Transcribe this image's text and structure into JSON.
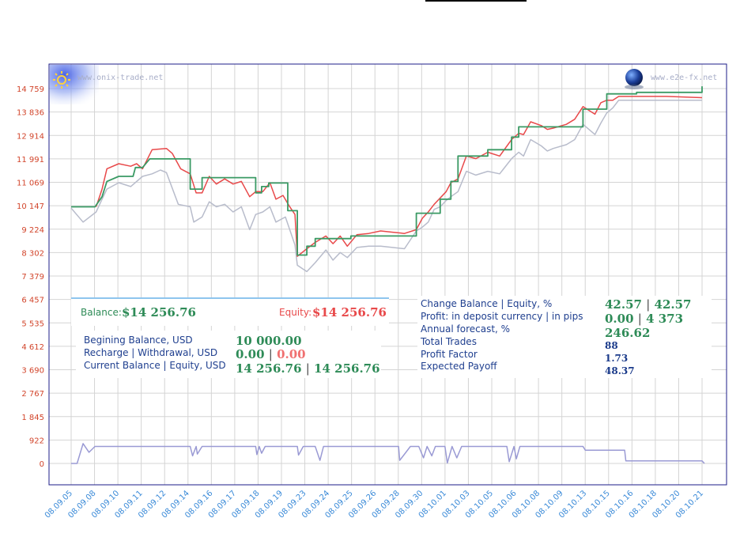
{
  "watermarks": {
    "left": "www.onix-trade.net",
    "right": "www.e2e-fx.net"
  },
  "summary": {
    "balance_label": "Balance:",
    "balance_value": "$14 256.76",
    "equity_label": "Equity:",
    "equity_value": "$14 256.76"
  },
  "left_stats": {
    "beginning_label": "Begining Balance, USD",
    "beginning_value": "10 000.00",
    "recharge_label": "Recharge | Withdrawal, USD",
    "recharge_value": "0.00",
    "withdrawal_value": "0.00",
    "current_label": "Current Balance | Equity, USD",
    "current_balance": "14 256.76",
    "current_equity": "14 256.76",
    "separator": "|"
  },
  "right_stats": {
    "change_label": "Change Balance | Equity, %",
    "change_balance": "42.57",
    "change_equity": "42.57",
    "profit_label": "Profit: in deposit currency | in pips",
    "profit_currency": "0.00",
    "profit_pips": "4 373",
    "forecast_label": "Annual forecast, %",
    "forecast_value": "246.62",
    "trades_label": "Total Trades",
    "trades_value": "88",
    "pf_label": "Profit Factor",
    "pf_value": "1.73",
    "payoff_label": "Expected Payoff",
    "payoff_value": "48.37"
  },
  "chart_data": {
    "type": "line",
    "y_ticks": [
      "14 759",
      "13 836",
      "12 914",
      "11 991",
      "11 069",
      "10 147",
      "9 224",
      "8 302",
      "7 379",
      "6 457",
      "5 535",
      "4 612",
      "3 690",
      "2 767",
      "1 845",
      "922",
      "0"
    ],
    "x_ticks": [
      "08.09.05",
      "08.09.08",
      "08.09.10",
      "08.09.11",
      "08.09.12",
      "08.09.14",
      "08.09.16",
      "08.09.17",
      "08.09.18",
      "08.09.19",
      "08.09.23",
      "08.09.24",
      "08.09.25",
      "08.09.26",
      "08.09.28",
      "08.09.30",
      "08.10.01",
      "08.10.03",
      "08.10.05",
      "08.10.06",
      "08.10.08",
      "08.10.09",
      "08.10.13",
      "08.10.15",
      "08.10.16",
      "08.10.18",
      "08.10.20",
      "08.10.21"
    ],
    "grid": true,
    "colors": {
      "balance": "#3a9a64",
      "equity": "#e8494a",
      "lower": "#b8bccb",
      "volume": "#9a9ad4",
      "axis": "#1e1e8a",
      "grid": "#d4d4d4",
      "ytick": "#d2452b",
      "xtick": "#3a8ad8"
    },
    "series": [
      {
        "key": "balance",
        "points": [
          [
            0,
            10100
          ],
          [
            2,
            10100
          ],
          [
            2.6,
            10500
          ],
          [
            3,
            11100
          ],
          [
            4,
            11300
          ],
          [
            5.2,
            11300
          ],
          [
            5.4,
            11650
          ],
          [
            6,
            11650
          ],
          [
            6.6,
            11990
          ],
          [
            10,
            11990
          ],
          [
            10,
            10800
          ],
          [
            11,
            10800
          ],
          [
            11,
            11250
          ],
          [
            15.5,
            11250
          ],
          [
            15.5,
            10650
          ],
          [
            16,
            10650
          ],
          [
            16,
            10900
          ],
          [
            16.6,
            10900
          ],
          [
            16.6,
            11040
          ],
          [
            18.2,
            11040
          ],
          [
            18.2,
            9950
          ],
          [
            19,
            9950
          ],
          [
            19,
            8200
          ],
          [
            19.8,
            8200
          ],
          [
            19.8,
            8550
          ],
          [
            20.5,
            8550
          ],
          [
            20.5,
            8850
          ],
          [
            23.5,
            8850
          ],
          [
            23.5,
            8950
          ],
          [
            29,
            8950
          ],
          [
            29,
            9850
          ],
          [
            31,
            9850
          ],
          [
            31,
            10400
          ],
          [
            31.9,
            10400
          ],
          [
            31.9,
            11100
          ],
          [
            32.5,
            11100
          ],
          [
            32.5,
            12100
          ],
          [
            35,
            12100
          ],
          [
            35,
            12350
          ],
          [
            37,
            12350
          ],
          [
            37,
            12850
          ],
          [
            37.6,
            12850
          ],
          [
            37.6,
            13250
          ],
          [
            43,
            13250
          ],
          [
            43,
            13950
          ],
          [
            45,
            13950
          ],
          [
            45,
            14550
          ],
          [
            47.5,
            14550
          ],
          [
            47.5,
            14610
          ],
          [
            53,
            14610
          ],
          [
            53,
            14850
          ]
        ]
      },
      {
        "key": "equity",
        "points": [
          [
            2.1,
            10100
          ],
          [
            2.6,
            10800
          ],
          [
            3,
            11600
          ],
          [
            4,
            11800
          ],
          [
            5,
            11700
          ],
          [
            5.5,
            11800
          ],
          [
            6,
            11600
          ],
          [
            6.8,
            12350
          ],
          [
            8,
            12400
          ],
          [
            8.5,
            12200
          ],
          [
            9.2,
            11600
          ],
          [
            10,
            11400
          ],
          [
            10.5,
            10650
          ],
          [
            11,
            10650
          ],
          [
            11.6,
            11300
          ],
          [
            12.2,
            11000
          ],
          [
            12.9,
            11200
          ],
          [
            13.6,
            11000
          ],
          [
            14.3,
            11100
          ],
          [
            15,
            10500
          ],
          [
            15.5,
            10700
          ],
          [
            16.1,
            10700
          ],
          [
            16.7,
            11050
          ],
          [
            17.2,
            10400
          ],
          [
            17.8,
            10550
          ],
          [
            18.3,
            10150
          ],
          [
            18.8,
            9800
          ],
          [
            19,
            8150
          ],
          [
            19.8,
            8450
          ],
          [
            20.5,
            8700
          ],
          [
            21.4,
            8950
          ],
          [
            22,
            8650
          ],
          [
            22.6,
            8950
          ],
          [
            23.2,
            8550
          ],
          [
            24,
            9000
          ],
          [
            25,
            9050
          ],
          [
            26,
            9150
          ],
          [
            27,
            9100
          ],
          [
            28,
            9050
          ],
          [
            29,
            9200
          ],
          [
            29.5,
            9650
          ],
          [
            30,
            9900
          ],
          [
            30.5,
            10200
          ],
          [
            31,
            10450
          ],
          [
            31.5,
            10700
          ],
          [
            31.9,
            11050
          ],
          [
            32.5,
            11200
          ],
          [
            33.2,
            12100
          ],
          [
            34,
            12000
          ],
          [
            35,
            12250
          ],
          [
            36,
            12100
          ],
          [
            37,
            12750
          ],
          [
            37.6,
            13000
          ],
          [
            38,
            12950
          ],
          [
            38.6,
            13450
          ],
          [
            39.5,
            13300
          ],
          [
            40,
            13150
          ],
          [
            40.5,
            13200
          ],
          [
            41.6,
            13350
          ],
          [
            42.3,
            13550
          ],
          [
            43,
            14050
          ],
          [
            44,
            13750
          ],
          [
            44.5,
            14200
          ],
          [
            45,
            14300
          ],
          [
            45.5,
            14300
          ],
          [
            46,
            14450
          ],
          [
            47,
            14450
          ],
          [
            48,
            14450
          ],
          [
            50,
            14450
          ],
          [
            53,
            14400
          ]
        ]
      },
      {
        "key": "lower",
        "points": [
          [
            0,
            10050
          ],
          [
            1,
            9500
          ],
          [
            2.1,
            9900
          ],
          [
            2.6,
            10400
          ],
          [
            3,
            10800
          ],
          [
            4,
            11050
          ],
          [
            5,
            10900
          ],
          [
            6,
            11300
          ],
          [
            6.8,
            11400
          ],
          [
            7.5,
            11550
          ],
          [
            8,
            11450
          ],
          [
            9,
            10200
          ],
          [
            10,
            10100
          ],
          [
            10.3,
            9500
          ],
          [
            11,
            9700
          ],
          [
            11.6,
            10300
          ],
          [
            12.2,
            10100
          ],
          [
            12.9,
            10200
          ],
          [
            13.6,
            9900
          ],
          [
            14.3,
            10100
          ],
          [
            15,
            9200
          ],
          [
            15.5,
            9800
          ],
          [
            16.1,
            9900
          ],
          [
            16.7,
            10100
          ],
          [
            17.2,
            9500
          ],
          [
            18,
            9700
          ],
          [
            18.8,
            8600
          ],
          [
            19,
            7800
          ],
          [
            19.8,
            7550
          ],
          [
            20.5,
            7900
          ],
          [
            21.4,
            8400
          ],
          [
            22,
            8000
          ],
          [
            22.6,
            8300
          ],
          [
            23.2,
            8100
          ],
          [
            24,
            8500
          ],
          [
            25,
            8550
          ],
          [
            26,
            8550
          ],
          [
            27,
            8500
          ],
          [
            28,
            8450
          ],
          [
            29,
            9150
          ],
          [
            29.5,
            9300
          ],
          [
            30,
            9500
          ],
          [
            30.5,
            10000
          ],
          [
            31,
            10100
          ],
          [
            31.5,
            10350
          ],
          [
            31.9,
            10500
          ],
          [
            32.5,
            10700
          ],
          [
            33.2,
            11500
          ],
          [
            34,
            11350
          ],
          [
            35,
            11500
          ],
          [
            36,
            11400
          ],
          [
            37,
            12000
          ],
          [
            37.6,
            12250
          ],
          [
            38,
            12100
          ],
          [
            38.6,
            12750
          ],
          [
            39.5,
            12500
          ],
          [
            40,
            12300
          ],
          [
            40.5,
            12400
          ],
          [
            41.6,
            12550
          ],
          [
            42.3,
            12750
          ],
          [
            43,
            13350
          ],
          [
            44,
            12950
          ],
          [
            44.5,
            13400
          ],
          [
            45,
            13800
          ],
          [
            45.5,
            14000
          ],
          [
            46,
            14300
          ],
          [
            47,
            14300
          ],
          [
            48,
            14300
          ],
          [
            50,
            14300
          ],
          [
            53,
            14300
          ]
        ]
      },
      {
        "key": "volume",
        "points": [
          [
            0,
            0
          ],
          [
            0.5,
            0
          ],
          [
            1,
            780
          ],
          [
            1.5,
            440
          ],
          [
            2,
            670
          ],
          [
            3,
            670
          ],
          [
            5,
            670
          ],
          [
            10,
            670
          ],
          [
            10.2,
            300
          ],
          [
            10.5,
            670
          ],
          [
            10.6,
            370
          ],
          [
            11,
            670
          ],
          [
            15.5,
            670
          ],
          [
            15.6,
            350
          ],
          [
            15.8,
            670
          ],
          [
            16,
            400
          ],
          [
            16.3,
            670
          ],
          [
            19,
            670
          ],
          [
            19.1,
            330
          ],
          [
            19.5,
            670
          ],
          [
            20.5,
            670
          ],
          [
            20.9,
            120
          ],
          [
            21.2,
            670
          ],
          [
            27.5,
            670
          ],
          [
            27.6,
            120
          ],
          [
            28.5,
            670
          ],
          [
            29.2,
            670
          ],
          [
            29.6,
            220
          ],
          [
            29.9,
            670
          ],
          [
            30.3,
            300
          ],
          [
            30.6,
            670
          ],
          [
            31.4,
            670
          ],
          [
            31.6,
            20
          ],
          [
            32,
            670
          ],
          [
            32.4,
            220
          ],
          [
            32.8,
            670
          ],
          [
            36.6,
            670
          ],
          [
            36.8,
            70
          ],
          [
            37.2,
            670
          ],
          [
            37.4,
            180
          ],
          [
            37.7,
            670
          ],
          [
            43,
            670
          ],
          [
            43.2,
            520
          ],
          [
            46.5,
            520
          ],
          [
            46.6,
            100
          ],
          [
            53,
            100
          ],
          [
            53.2,
            0
          ]
        ]
      }
    ]
  }
}
